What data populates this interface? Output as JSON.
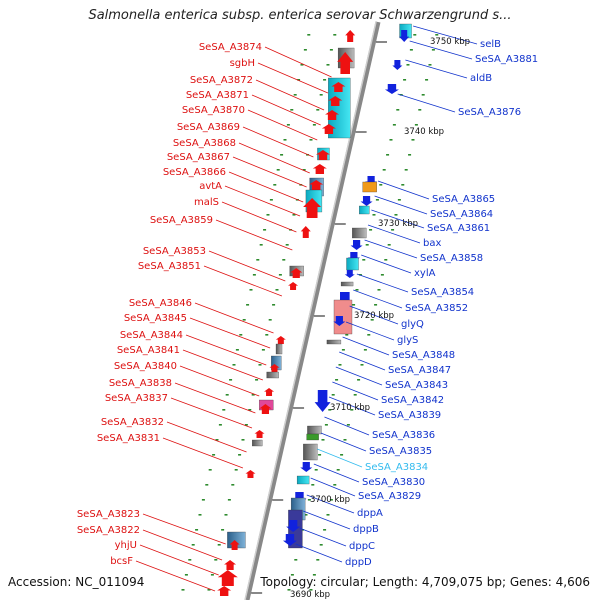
{
  "title": "Salmonella enterica subsp. enterica serovar Schwarzengrund s...",
  "footer": {
    "accession": "Accession: NC_011094",
    "summary": "Topology: circular; Length: 4,709,075 bp; Genes: 4,606"
  },
  "ticks": [
    "3750 kbp",
    "3740 kbp",
    "3730 kbp",
    "3720 kbp",
    "3710 kbp",
    "3700 kbp",
    "3690 kbp"
  ],
  "left_labels": [
    "SeSA_A3874",
    "sgbH",
    "SeSA_A3872",
    "SeSA_A3871",
    "SeSA_A3870",
    "SeSA_A3869",
    "SeSA_A3868",
    "SeSA_A3867",
    "SeSA_A3866",
    "avtA",
    "malS",
    "SeSA_A3859",
    "SeSA_A3853",
    "SeSA_A3851",
    "SeSA_A3846",
    "SeSA_A3845",
    "SeSA_A3844",
    "SeSA_A3841",
    "SeSA_A3840",
    "SeSA_A3838",
    "SeSA_A3837",
    "SeSA_A3832",
    "SeSA_A3831",
    "SeSA_A3823",
    "SeSA_A3822",
    "yhjU",
    "bcsF"
  ],
  "right_labels": [
    "selB",
    "SeSA_A3881",
    "aldB",
    "SeSA_A3876",
    "SeSA_A3865",
    "SeSA_A3864",
    "SeSA_A3861",
    "bax",
    "SeSA_A3858",
    "xylA",
    "SeSA_A3854",
    "SeSA_A3852",
    "glyQ",
    "glyS",
    "SeSA_A3848",
    "SeSA_A3847",
    "SeSA_A3843",
    "SeSA_A3842",
    "SeSA_A3839",
    "SeSA_A3836",
    "SeSA_A3835",
    "SeSA_A3834",
    "SeSA_A3830",
    "SeSA_A3829",
    "dppA",
    "dppB",
    "dppC",
    "dppD"
  ],
  "highlighted_label": "SeSA_A3834",
  "colors": {
    "left": "#dd1111",
    "right": "#1133cc",
    "highlight": "#33bbee"
  }
}
